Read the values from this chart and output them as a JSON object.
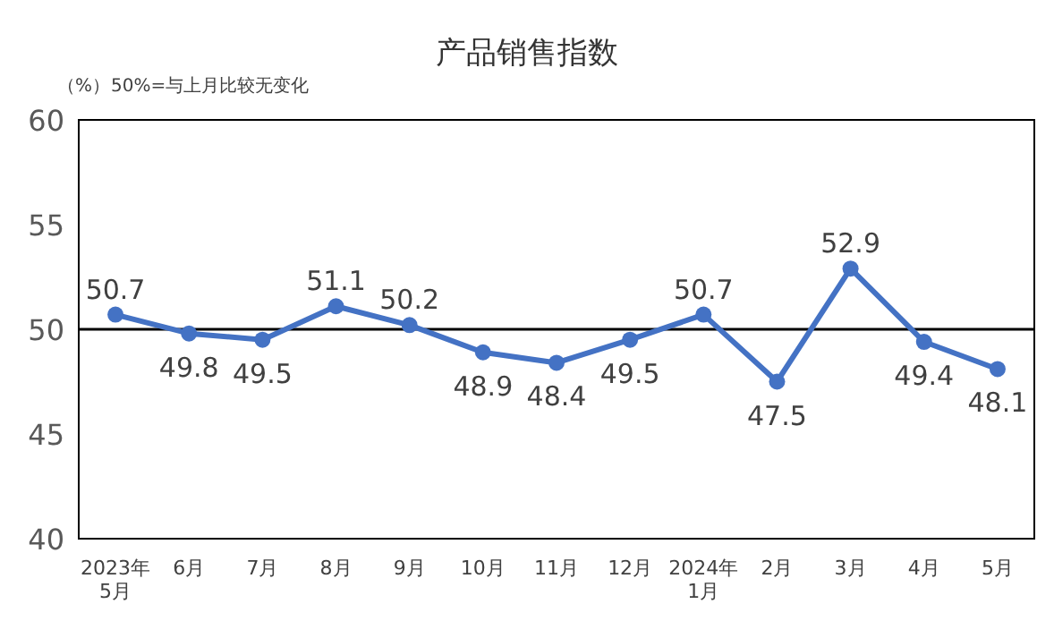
{
  "chart_data": {
    "type": "line",
    "title": "产品销售指数",
    "ylabel": "（%）",
    "annotations": [
      "50%=与上月比较无变化"
    ],
    "categories": [
      "2023年\n5月",
      "6月",
      "7月",
      "8月",
      "9月",
      "10月",
      "11月",
      "12月",
      "2024年\n1月",
      "2月",
      "3月",
      "4月",
      "5月"
    ],
    "series": [
      {
        "color": "#4472c4",
        "values": [
          50.7,
          49.8,
          49.5,
          51.1,
          50.2,
          48.9,
          48.4,
          49.5,
          50.7,
          47.5,
          52.9,
          49.4,
          48.1
        ]
      }
    ],
    "ylim": [
      40,
      60
    ],
    "yticks": [
      40,
      45,
      50,
      55,
      60
    ],
    "marker": "circle",
    "data_labels": true,
    "ref_lines": [
      {
        "axis": "y",
        "value": 50,
        "color": "#000000"
      }
    ]
  }
}
